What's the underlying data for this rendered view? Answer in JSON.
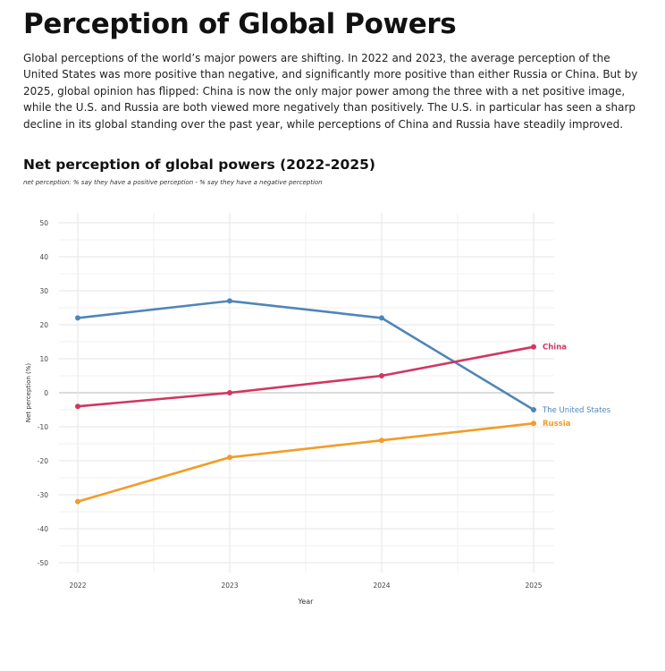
{
  "article": {
    "headline": "Perception of Global Powers",
    "body": "Global perceptions of the world’s major powers are shifting. In 2022 and 2023, the average perception of the United States was more positive than negative, and significantly more positive than either Russia or China. But by 2025, global opinion has flipped: China is now the only major power among the three with a net positive image, while the U.S. and Russia are both viewed more negatively than positively. The U.S. in particular has seen a sharp decline in its global standing over the past year, while perceptions of China and Russia have steadily improved."
  },
  "chart_data": {
    "type": "line",
    "title": "Net perception of global powers (2022-2025)",
    "subtitle": "net perception: % say they have a positive perception - % say they have a negative perception",
    "xlabel": "Year",
    "ylabel": "Net perception (%)",
    "x": [
      2022,
      2023,
      2024,
      2025
    ],
    "ylim": [
      -50,
      50
    ],
    "yticks": [
      50,
      40,
      30,
      20,
      10,
      0,
      -10,
      -20,
      -30,
      -40,
      -50
    ],
    "grid": true,
    "legend": "direct labels at line ends (right)",
    "series": [
      {
        "name": "The United States",
        "values": [
          22,
          27,
          22,
          -5
        ],
        "color": "#4f86b8"
      },
      {
        "name": "China",
        "values": [
          -4,
          0,
          5,
          13.5
        ],
        "color": "#d23660"
      },
      {
        "name": "Russia",
        "values": [
          -32,
          -19,
          -14,
          -9
        ],
        "color": "#f39c26"
      }
    ]
  }
}
